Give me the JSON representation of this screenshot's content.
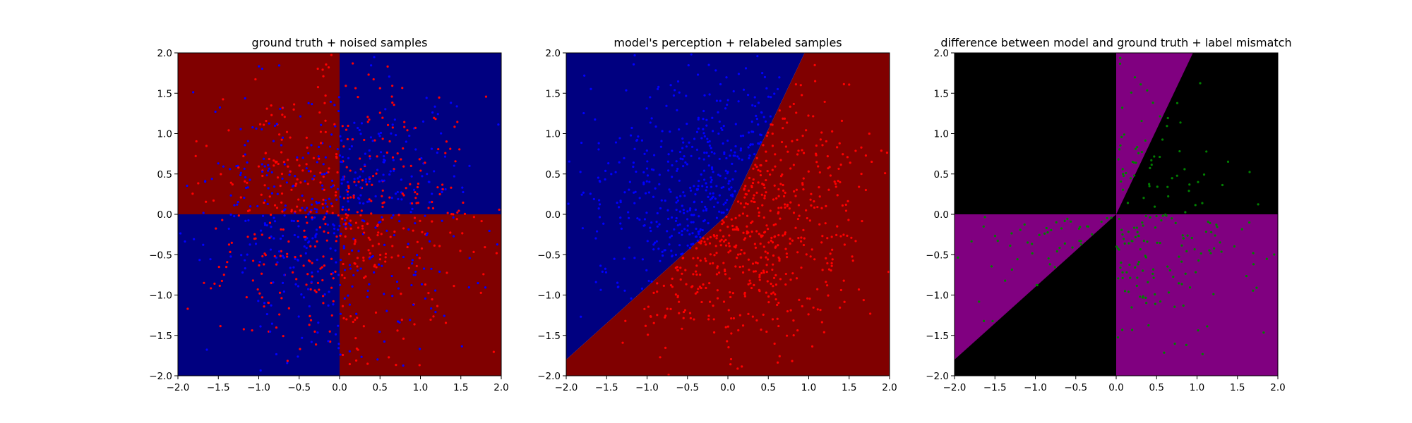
{
  "figure": {
    "panels": 3
  },
  "chart_data": [
    {
      "type": "scatter",
      "title": "ground truth + noised samples",
      "xlabel": "",
      "ylabel": "",
      "xlim": [
        -2.0,
        2.0
      ],
      "ylim": [
        -2.0,
        2.0
      ],
      "x_ticks": [
        "−2.0",
        "−1.5",
        "−1.0",
        "−0.5",
        "0.0",
        "0.5",
        "1.0",
        "1.5",
        "2.0"
      ],
      "y_ticks": [
        "−2.0",
        "−1.5",
        "−1.0",
        "−0.5",
        "0.0",
        "0.5",
        "1.0",
        "1.5",
        "2.0"
      ],
      "background": {
        "rule": "quadrant",
        "x_positive_y_positive": "#000080",
        "x_negative_y_negative": "#000080",
        "x_positive_y_negative": "#800000",
        "x_negative_y_positive": "#800000"
      },
      "point_colors": [
        "#ff0000",
        "#0000ff"
      ],
      "point_count": 1000,
      "grid": false,
      "legend": "none"
    },
    {
      "type": "scatter",
      "title": "model's perception + relabeled samples",
      "xlabel": "",
      "ylabel": "",
      "xlim": [
        -2.0,
        2.0
      ],
      "ylim": [
        -2.0,
        2.0
      ],
      "x_ticks": [
        "−2.0",
        "−1.5",
        "−1.0",
        "−0.5",
        "0.0",
        "0.5",
        "1.0",
        "1.5",
        "2.0"
      ],
      "y_ticks": [
        "−2.0",
        "−1.5",
        "−1.0",
        "−0.5",
        "0.0",
        "0.5",
        "1.0",
        "1.5",
        "2.0"
      ],
      "background": {
        "rule": "piecewise_linear_boundary",
        "boundary": [
          [
            -2.0,
            -1.8
          ],
          [
            0.0,
            0.0
          ],
          [
            0.95,
            2.0
          ]
        ],
        "above_color": "#000080",
        "below_color": "#800000"
      },
      "point_colors": {
        "above": "#0000ff",
        "below": "#ff0000"
      },
      "point_count": 1000,
      "grid": false,
      "legend": "none"
    },
    {
      "type": "scatter",
      "title": "difference between model and ground truth + label mismatch",
      "xlabel": "",
      "ylabel": "",
      "xlim": [
        -2.0,
        2.0
      ],
      "ylim": [
        -2.0,
        2.0
      ],
      "x_ticks": [
        "−2.0",
        "−1.5",
        "−1.0",
        "−0.5",
        "0.0",
        "0.5",
        "1.0",
        "1.5",
        "2.0"
      ],
      "y_ticks": [
        "−2.0",
        "−1.5",
        "−1.0",
        "−0.5",
        "0.0",
        "0.5",
        "1.0",
        "1.5",
        "2.0"
      ],
      "background": {
        "rule": "mismatch",
        "agree_color": "#000000",
        "mismatch_color": "#800080"
      },
      "point_colors": [
        "#008000"
      ],
      "point_count": 500,
      "grid": false,
      "legend": "none"
    }
  ]
}
